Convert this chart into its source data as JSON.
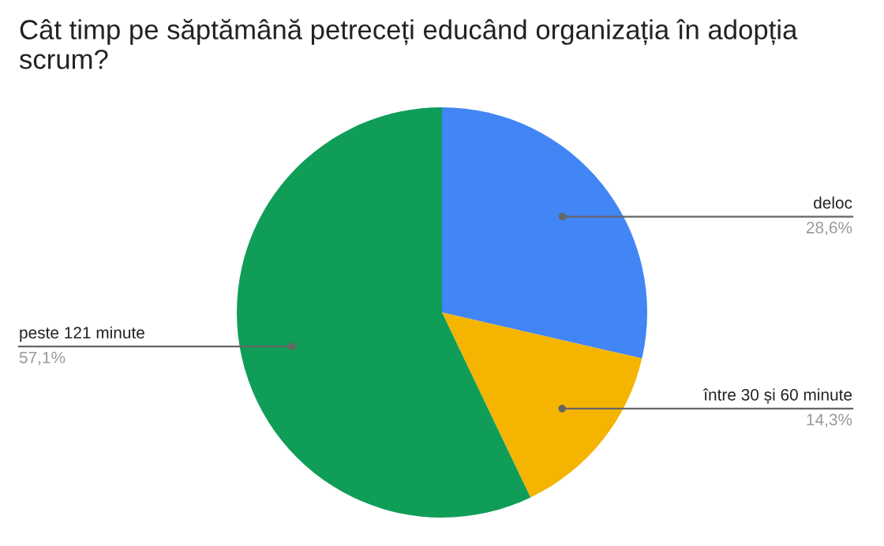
{
  "chart_data": {
    "type": "pie",
    "title": "Cât timp pe săptămână petreceți educând organizația în adopția scrum?",
    "categories": [
      "deloc",
      "între 30 și 60 minute",
      "peste 121 minute"
    ],
    "values": [
      28.6,
      14.3,
      57.1
    ],
    "colors": [
      "#4285f4",
      "#f4b400",
      "#0f9d58"
    ],
    "value_labels": [
      "28,6%",
      "14,3%",
      "57,1%"
    ],
    "legend": false
  }
}
